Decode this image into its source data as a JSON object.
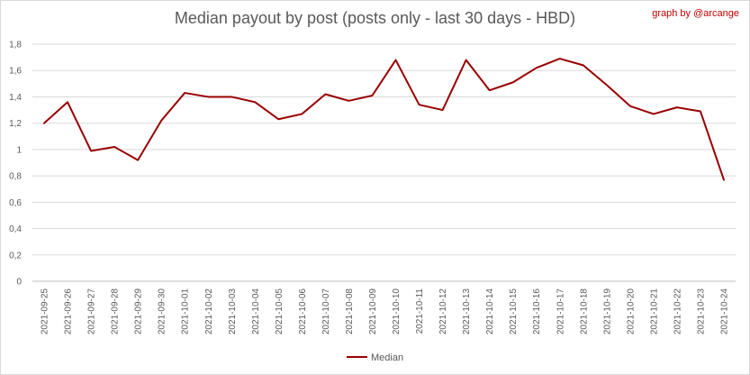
{
  "credit": "graph by @arcange",
  "chart_data": {
    "type": "line",
    "title": "Median payout by post (posts only - last 30 days - HBD)",
    "xlabel": "",
    "ylabel": "",
    "ylim": [
      0,
      1.8
    ],
    "y_ticks": [
      "0",
      "0,2",
      "0,4",
      "0,6",
      "0,8",
      "1",
      "1,2",
      "1,4",
      "1,6",
      "1,8"
    ],
    "grid": true,
    "legend_position": "bottom",
    "colors": {
      "line": "#990000",
      "grid": "#d9d9d9",
      "axis": "#bfbfbf"
    },
    "categories": [
      "2021-09-25",
      "2021-09-26",
      "2021-09-27",
      "2021-09-28",
      "2021-09-29",
      "2021-09-30",
      "2021-10-01",
      "2021-10-02",
      "2021-10-03",
      "2021-10-04",
      "2021-10-05",
      "2021-10-06",
      "2021-10-07",
      "2021-10-08",
      "2021-10-09",
      "2021-10-10",
      "2021-10-11",
      "2021-10-12",
      "2021-10-13",
      "2021-10-14",
      "2021-10-15",
      "2021-10-16",
      "2021-10-17",
      "2021-10-18",
      "2021-10-19",
      "2021-10-20",
      "2021-10-21",
      "2021-10-22",
      "2021-10-23",
      "2021-10-24"
    ],
    "series": [
      {
        "name": "Median",
        "values": [
          1.2,
          1.36,
          0.99,
          1.02,
          0.92,
          1.22,
          1.43,
          1.4,
          1.4,
          1.36,
          1.23,
          1.27,
          1.42,
          1.37,
          1.41,
          1.68,
          1.34,
          1.3,
          1.68,
          1.45,
          1.51,
          1.62,
          1.69,
          1.64,
          1.49,
          1.33,
          1.27,
          1.32,
          1.29,
          0.77
        ]
      }
    ]
  }
}
